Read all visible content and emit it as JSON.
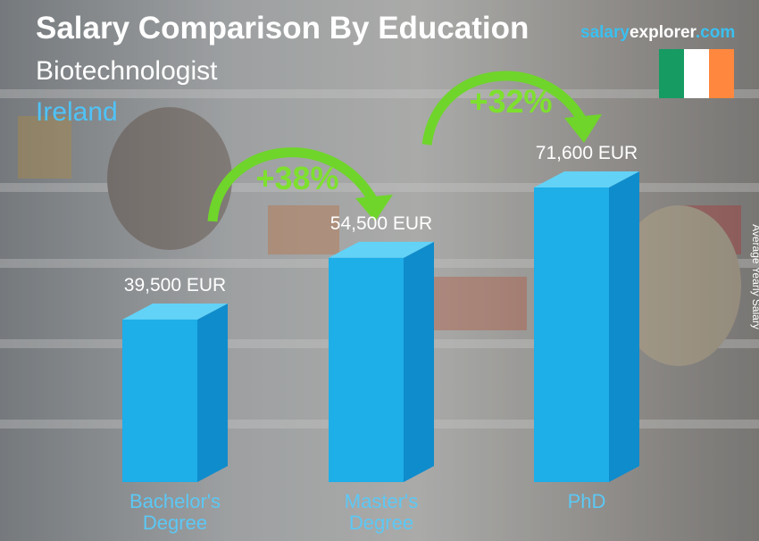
{
  "chart_data": {
    "type": "bar",
    "title": "Salary Comparison By Education",
    "subtitle": "Biotechnologist",
    "location": "Ireland",
    "brand": {
      "part1": "salary",
      "part2": "explorer",
      "part3": ".com"
    },
    "axis_label": "Average Yearly Salary",
    "categories": [
      "Bachelor's Degree",
      "Master's Degree",
      "PhD"
    ],
    "values": [
      39500,
      54500,
      71600
    ],
    "value_labels": [
      "39,500 EUR",
      "54,500 EUR",
      "71,600 EUR"
    ],
    "annotations": [
      "+38%",
      "+32%"
    ],
    "color": "#1eaee8"
  }
}
